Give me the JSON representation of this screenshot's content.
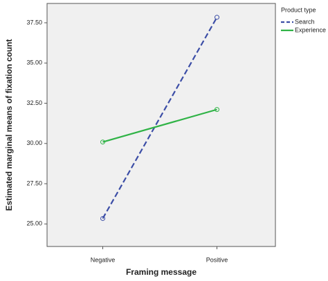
{
  "chart_data": {
    "type": "line",
    "x_label": "Framing message",
    "y_label": "Estimated marginal means of fixation count",
    "categories": [
      "Negative",
      "Positive"
    ],
    "series": [
      {
        "name": "Search",
        "color": "#3b4da6",
        "dash": true,
        "values": [
          25.34,
          37.84
        ]
      },
      {
        "name": "Experience",
        "color": "#2fb346",
        "dash": false,
        "values": [
          30.09,
          32.11
        ]
      }
    ],
    "ylim": [
      23.6,
      38.7
    ],
    "yticks": [
      {
        "value": 25,
        "label": "25.00"
      },
      {
        "value": 27.5,
        "label": "27.50"
      },
      {
        "value": 30,
        "label": "30.00"
      },
      {
        "value": 32.5,
        "label": "32.50"
      },
      {
        "value": 35,
        "label": "35.00"
      },
      {
        "value": 37.5,
        "label": "37.50"
      }
    ],
    "legend_title": "Product type",
    "legend": "right",
    "markers": true
  }
}
